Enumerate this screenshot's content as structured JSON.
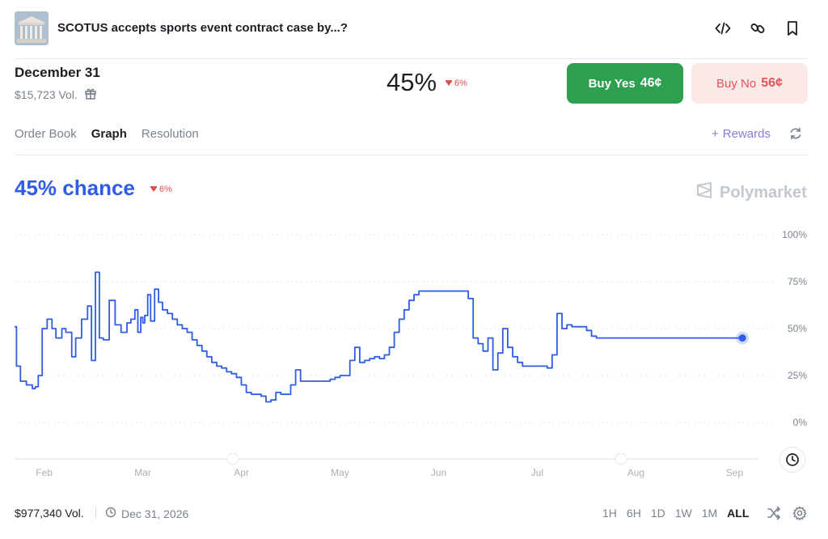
{
  "header": {
    "title": "SCOTUS accepts sports event contract case by...?",
    "icons": [
      "embed-icon",
      "link-icon",
      "bookmark-icon"
    ]
  },
  "market": {
    "date_label": "December 31",
    "volume": "$15,723 Vol.",
    "probability": "45%",
    "delta": "6%",
    "delta_direction": "down",
    "buy_yes_label": "Buy Yes",
    "buy_yes_price": "46¢",
    "buy_no_label": "Buy No",
    "buy_no_price": "56¢"
  },
  "tabs": [
    "Order Book",
    "Graph",
    "Resolution"
  ],
  "active_tab": "Graph",
  "rewards_label": "Rewards",
  "chance": {
    "text": "45% chance",
    "delta": "6%"
  },
  "brand": "Polymarket",
  "footer": {
    "volume": "$977,340 Vol.",
    "end_date": "Dec 31, 2026",
    "ranges": [
      "1H",
      "6H",
      "1D",
      "1W",
      "1M",
      "ALL"
    ],
    "selected_range": "ALL"
  },
  "colors": {
    "line": "#2e5ce6",
    "yes": "#2e9e4f",
    "no_bg": "#fbe8e7",
    "no_text": "#e05558",
    "down": "#e04d4d",
    "rewards": "#8d7ad6"
  },
  "chart_data": {
    "type": "line",
    "y_ticks": [
      "100%",
      "75%",
      "50%",
      "25%",
      "0%"
    ],
    "x_ticks": [
      "Feb",
      "Mar",
      "Apr",
      "May",
      "Jun",
      "Jul",
      "Aug",
      "Sep"
    ],
    "ylim": [
      0,
      100
    ],
    "xlim": [
      -0.3,
      7.3
    ],
    "grid": true,
    "series": [
      {
        "x": [
          -0.3,
          -0.28,
          -0.24,
          -0.18,
          -0.12,
          -0.09,
          -0.06,
          -0.02,
          0.03,
          0.08,
          0.12,
          0.18,
          0.22,
          0.28,
          0.32,
          0.38,
          0.44,
          0.48,
          0.52,
          0.56,
          0.6,
          0.66,
          0.72,
          0.78,
          0.84,
          0.88,
          0.92,
          0.95,
          0.98,
          1.0,
          1.02,
          1.05,
          1.08,
          1.12,
          1.16,
          1.2,
          1.25,
          1.3,
          1.35,
          1.4,
          1.45,
          1.5,
          1.55,
          1.6,
          1.65,
          1.7,
          1.75,
          1.8,
          1.85,
          1.9,
          1.95,
          2.0,
          2.05,
          2.1,
          2.15,
          2.2,
          2.25,
          2.3,
          2.35,
          2.4,
          2.45,
          2.5,
          2.55,
          2.6,
          2.65,
          2.7,
          2.75,
          2.8,
          2.85,
          2.9,
          2.95,
          3.0,
          3.05,
          3.1,
          3.15,
          3.2,
          3.25,
          3.3,
          3.35,
          3.4,
          3.45,
          3.5,
          3.55,
          3.6,
          3.65,
          3.7,
          3.75,
          3.8,
          3.85,
          3.9,
          3.95,
          4.0,
          4.05,
          4.1,
          4.15,
          4.2,
          4.25,
          4.3,
          4.35,
          4.4,
          4.45,
          4.5,
          4.55,
          4.6,
          4.65,
          4.7,
          4.75,
          4.8,
          4.85,
          4.9,
          4.95,
          5.0,
          5.05,
          5.1,
          5.15,
          5.2,
          5.25,
          5.3,
          5.35,
          5.4,
          5.45,
          5.5,
          5.55,
          5.6,
          5.65,
          5.7,
          5.75,
          5.8,
          5.85,
          5.9,
          5.95,
          6.0,
          6.05,
          6.1,
          6.15,
          6.2,
          6.25,
          6.3,
          6.35,
          6.4,
          6.45,
          6.5,
          6.55,
          6.6,
          6.65,
          6.7,
          6.75,
          6.8,
          6.85,
          6.9,
          6.95,
          7.0,
          7.05,
          7.08
        ],
        "y": [
          51,
          30,
          22,
          20,
          18,
          19,
          25,
          50,
          55,
          50,
          45,
          50,
          48,
          35,
          45,
          55,
          62,
          33,
          80,
          45,
          44,
          65,
          52,
          48,
          53,
          55,
          60,
          48,
          56,
          53,
          57,
          68,
          54,
          71,
          64,
          60,
          58,
          55,
          52,
          50,
          48,
          44,
          41,
          38,
          35,
          32,
          30,
          29,
          27,
          26,
          24,
          20,
          16,
          15,
          15,
          14,
          11,
          12,
          16,
          15,
          15,
          20,
          28,
          22,
          22,
          22,
          22,
          22,
          22,
          23,
          24,
          25,
          25,
          33,
          40,
          32,
          33,
          34,
          35,
          34,
          36,
          40,
          48,
          55,
          60,
          65,
          68,
          70,
          70,
          70,
          70,
          70,
          70,
          70,
          70,
          70,
          70,
          66,
          45,
          42,
          38,
          45,
          28,
          37,
          50,
          40,
          35,
          32,
          30,
          30,
          30,
          30,
          30,
          29,
          36,
          58,
          50,
          52,
          51,
          51,
          51,
          49,
          46,
          45,
          45,
          45,
          45,
          45,
          45,
          45,
          45,
          45,
          45,
          45,
          45,
          45,
          45,
          45,
          45,
          45,
          45,
          45,
          45,
          45,
          45,
          45,
          45,
          45,
          45,
          45,
          45,
          45,
          45,
          45
        ]
      }
    ]
  }
}
